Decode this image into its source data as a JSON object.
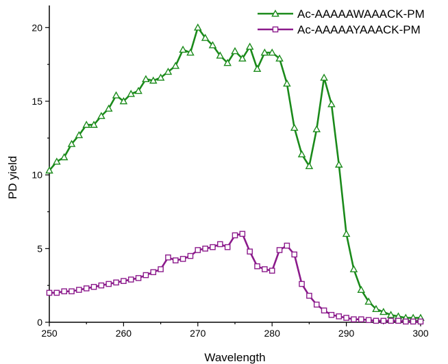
{
  "chart_data": {
    "type": "line",
    "xlabel": "Wavelength",
    "ylabel": "PD yield",
    "xlim": [
      250,
      300
    ],
    "ylim": [
      0,
      21.5
    ],
    "x_ticks": [
      250,
      260,
      270,
      280,
      290,
      300
    ],
    "y_ticks": [
      0,
      5,
      10,
      15,
      20
    ],
    "grid": false,
    "legend_position": "top-right",
    "x": [
      250,
      251,
      252,
      253,
      254,
      255,
      256,
      257,
      258,
      259,
      260,
      261,
      262,
      263,
      264,
      265,
      266,
      267,
      268,
      269,
      270,
      271,
      272,
      273,
      274,
      275,
      276,
      277,
      278,
      279,
      280,
      281,
      282,
      283,
      284,
      285,
      286,
      287,
      288,
      289,
      290,
      291,
      292,
      293,
      294,
      295,
      296,
      297,
      298,
      299,
      300
    ],
    "series": [
      {
        "name": "Ac-AAAAAWAAACK-PM",
        "color": "#1a8a1a",
        "marker": "triangle",
        "values": [
          10.3,
          10.9,
          11.2,
          12.1,
          12.7,
          13.4,
          13.4,
          14.0,
          14.5,
          15.4,
          15.0,
          15.5,
          15.7,
          16.5,
          16.4,
          16.6,
          17.0,
          17.4,
          18.5,
          18.3,
          20.0,
          19.3,
          18.8,
          18.1,
          17.6,
          18.4,
          17.9,
          18.7,
          17.2,
          18.3,
          18.3,
          17.9,
          16.2,
          13.2,
          11.4,
          10.6,
          13.1,
          16.6,
          14.8,
          10.7,
          6.0,
          3.6,
          2.2,
          1.4,
          0.9,
          0.7,
          0.5,
          0.4,
          0.3,
          0.3,
          0.3
        ]
      },
      {
        "name": "Ac-AAAAAYAAACK-PM",
        "color": "#8b1a8b",
        "marker": "square",
        "values": [
          2.0,
          2.0,
          2.1,
          2.1,
          2.2,
          2.3,
          2.4,
          2.5,
          2.6,
          2.7,
          2.8,
          2.9,
          3.0,
          3.2,
          3.4,
          3.6,
          4.4,
          4.2,
          4.3,
          4.5,
          4.9,
          5.0,
          5.1,
          5.3,
          5.1,
          5.9,
          6.0,
          4.8,
          3.8,
          3.6,
          3.5,
          4.9,
          5.2,
          4.6,
          2.6,
          1.8,
          1.2,
          0.8,
          0.5,
          0.4,
          0.3,
          0.2,
          0.2,
          0.15,
          0.1,
          0.1,
          0.1,
          0.1,
          0.05,
          0.05,
          0.05
        ]
      }
    ]
  }
}
